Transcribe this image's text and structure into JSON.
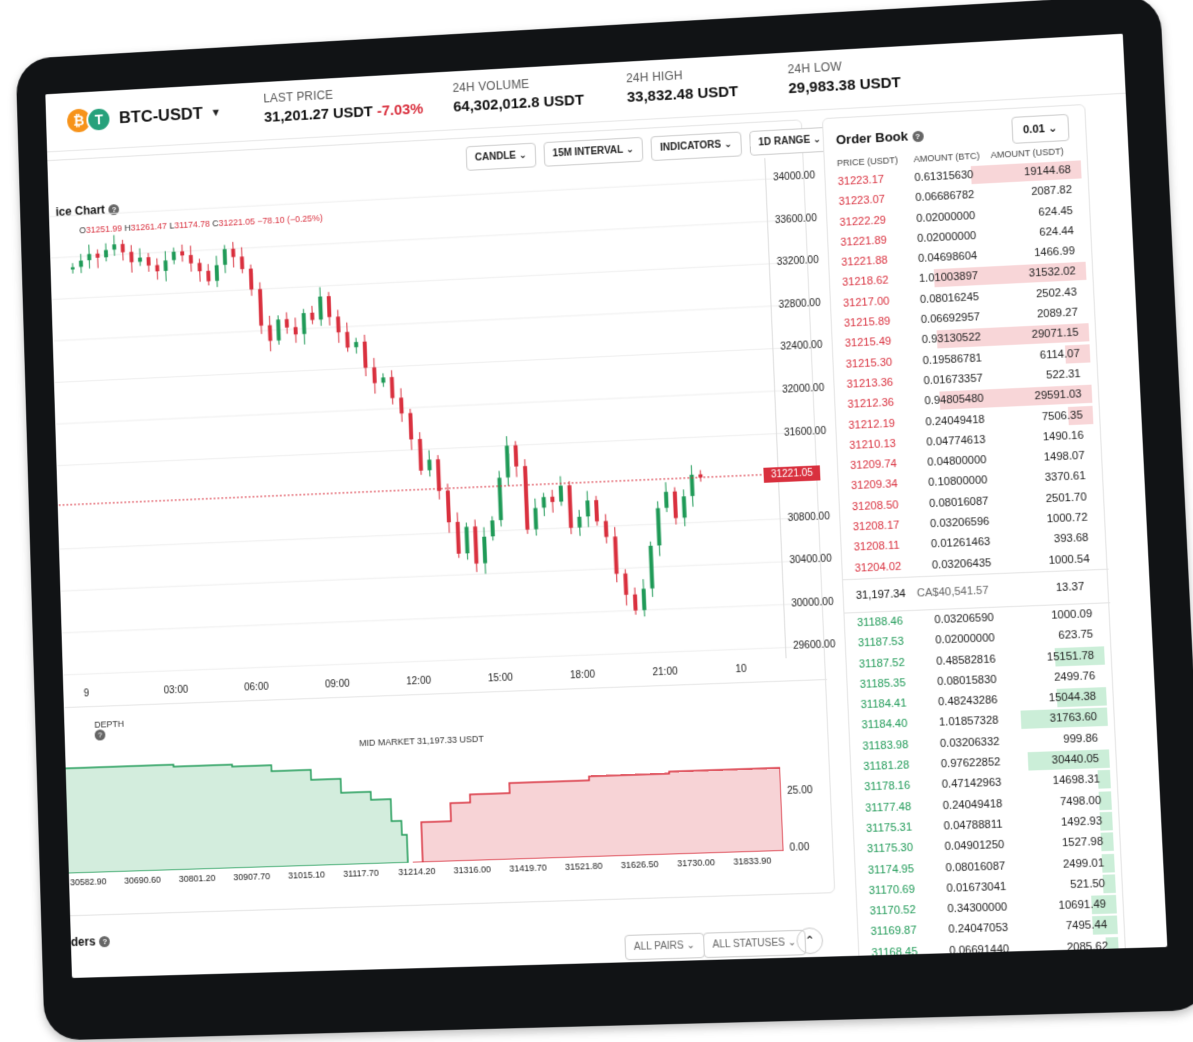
{
  "header": {
    "pair": "BTC-USDT",
    "coin_base": "₿",
    "coin_quote": "T",
    "last_price_label": "LAST PRICE",
    "last_price": "31,201.27 USDT",
    "last_change": "-7.03%",
    "volume_label": "24H VOLUME",
    "volume": "64,302,012.8 USDT",
    "high_label": "24H HIGH",
    "high": "33,832.48 USDT",
    "low_label": "24H LOW",
    "low": "29,983.38 USDT"
  },
  "chart": {
    "title": "ice Chart",
    "toolbar": {
      "candle": "CANDLE",
      "interval": "15M INTERVAL",
      "indicators": "INDICATORS",
      "range": "1D RANGE"
    },
    "ohlc": {
      "o_label": "O",
      "o": "31251.99",
      "h_label": "H",
      "h": "31261.47",
      "l_label": "L",
      "l": "31174.78",
      "c_label": "C",
      "c": "31221.05",
      "change": "−78.10 (−0.25%)"
    },
    "current_price_tag": "31221.05"
  },
  "chart_data": {
    "type": "candlestick",
    "title": "Price Chart",
    "x_ticks": [
      "9",
      "03:00",
      "06:00",
      "09:00",
      "12:00",
      "15:00",
      "18:00",
      "21:00",
      "10"
    ],
    "y_ticks": [
      "34000.00",
      "33600.00",
      "33200.00",
      "32800.00",
      "32400.00",
      "32000.00",
      "31600.00",
      "30800.00",
      "30400.00",
      "30000.00",
      "29600.00"
    ],
    "ylim": [
      29500,
      34200
    ],
    "close_path": [
      33500,
      33560,
      33620,
      33580,
      33650,
      33700,
      33620,
      33520,
      33560,
      33480,
      33420,
      33520,
      33600,
      33560,
      33480,
      33400,
      33300,
      33450,
      33600,
      33520,
      33400,
      33200,
      32850,
      32700,
      32900,
      32820,
      32750,
      32950,
      32880,
      33100,
      32900,
      32750,
      32600,
      32650,
      32400,
      32250,
      32300,
      32100,
      31950,
      31700,
      31400,
      31500,
      31200,
      30900,
      30600,
      30850,
      30500,
      30750,
      30900,
      31300,
      31600,
      31400,
      30800,
      31000,
      31100,
      31050,
      31200,
      30800,
      30900,
      31050,
      30850,
      30700,
      30350,
      30150,
      30000,
      30200,
      30600,
      30950,
      31100,
      30850,
      31050,
      31250,
      31221
    ],
    "mid_market_label": "MID MARKET",
    "mid_market": "31,197.33 USDT",
    "depth_label": "DEPTH",
    "depth_x_ticks": [
      "30582.90",
      "30690.60",
      "30801.20",
      "30907.70",
      "31015.10",
      "31117.70",
      "31214.20",
      "31316.00",
      "31419.70",
      "31521.80",
      "31626.50",
      "31730.00",
      "31833.90"
    ],
    "depth_y_ticks": [
      "25.00",
      "0.00"
    ]
  },
  "orders": {
    "label": "ders",
    "all_pairs": "ALL PAIRS",
    "all_statuses": "ALL STATUSES",
    "collapse_icon": "chevron-up-icon"
  },
  "orderbook": {
    "title": "Order Book",
    "precision": "0.01",
    "col_price": "PRICE (USDT)",
    "col_amount": "AMOUNT (BTC)",
    "col_total": "AMOUNT (USDT)",
    "asks": [
      {
        "p": "31223.17",
        "a": "0.61315630",
        "t": "19144.68",
        "w": 0.45
      },
      {
        "p": "31223.07",
        "a": "0.06686782",
        "t": "2087.82",
        "w": 0.0
      },
      {
        "p": "31222.29",
        "a": "0.02000000",
        "t": "624.45",
        "w": 0.0
      },
      {
        "p": "31221.89",
        "a": "0.02000000",
        "t": "624.44",
        "w": 0.0
      },
      {
        "p": "31221.88",
        "a": "0.04698604",
        "t": "1466.99",
        "w": 0.0
      },
      {
        "p": "31218.62",
        "a": "1.01003897",
        "t": "31532.02",
        "w": 0.62
      },
      {
        "p": "31217.00",
        "a": "0.08016245",
        "t": "2502.43",
        "w": 0.0
      },
      {
        "p": "31215.89",
        "a": "0.06692957",
        "t": "2089.27",
        "w": 0.0
      },
      {
        "p": "31215.49",
        "a": "0.93130522",
        "t": "29071.15",
        "w": 0.62
      },
      {
        "p": "31215.30",
        "a": "0.19586781",
        "t": "6114.07",
        "w": 0.1
      },
      {
        "p": "31213.36",
        "a": "0.01673357",
        "t": "522.31",
        "w": 0.0
      },
      {
        "p": "31212.36",
        "a": "0.94805480",
        "t": "29591.03",
        "w": 0.62
      },
      {
        "p": "31212.19",
        "a": "0.24049418",
        "t": "7506.35",
        "w": 0.1
      },
      {
        "p": "31210.13",
        "a": "0.04774613",
        "t": "1490.16",
        "w": 0.0
      },
      {
        "p": "31209.74",
        "a": "0.04800000",
        "t": "1498.07",
        "w": 0.0
      },
      {
        "p": "31209.34",
        "a": "0.10800000",
        "t": "3370.61",
        "w": 0.0
      },
      {
        "p": "31208.50",
        "a": "0.08016087",
        "t": "2501.70",
        "w": 0.0
      },
      {
        "p": "31208.17",
        "a": "0.03206596",
        "t": "1000.72",
        "w": 0.0
      },
      {
        "p": "31208.11",
        "a": "0.01261463",
        "t": "393.68",
        "w": 0.0
      },
      {
        "p": "31204.02",
        "a": "0.03206435",
        "t": "1000.54",
        "w": 0.0
      }
    ],
    "mid_price": "31,197.34",
    "mid_fiat": "CA$40,541.57",
    "mid_total": "13.37",
    "bids": [
      {
        "p": "31188.46",
        "a": "0.03206590",
        "t": "1000.09",
        "w": 0.0
      },
      {
        "p": "31187.53",
        "a": "0.02000000",
        "t": "623.75",
        "w": 0.0
      },
      {
        "p": "31187.52",
        "a": "0.48582816",
        "t": "15151.78",
        "w": 0.2
      },
      {
        "p": "31185.35",
        "a": "0.08015830",
        "t": "2499.76",
        "w": 0.0
      },
      {
        "p": "31184.41",
        "a": "0.48243286",
        "t": "15044.38",
        "w": 0.2
      },
      {
        "p": "31184.40",
        "a": "1.01857328",
        "t": "31763.60",
        "w": 0.35
      },
      {
        "p": "31183.98",
        "a": "0.03206332",
        "t": "999.86",
        "w": 0.0
      },
      {
        "p": "31181.28",
        "a": "0.97622852",
        "t": "30440.05",
        "w": 0.33
      },
      {
        "p": "31178.16",
        "a": "0.47142963",
        "t": "14698.31",
        "w": 0.05
      },
      {
        "p": "31177.48",
        "a": "0.24049418",
        "t": "7498.00",
        "w": 0.05
      },
      {
        "p": "31175.31",
        "a": "0.04788811",
        "t": "1492.93",
        "w": 0.05
      },
      {
        "p": "31175.30",
        "a": "0.04901250",
        "t": "1527.98",
        "w": 0.05
      },
      {
        "p": "31174.95",
        "a": "0.08016087",
        "t": "2499.01",
        "w": 0.05
      },
      {
        "p": "31170.69",
        "a": "0.01673041",
        "t": "521.50",
        "w": 0.05
      },
      {
        "p": "31170.52",
        "a": "0.34300000",
        "t": "10691.49",
        "w": 0.1
      },
      {
        "p": "31169.87",
        "a": "0.24047053",
        "t": "7495.44",
        "w": 0.1
      },
      {
        "p": "31168.45",
        "a": "0.06691440",
        "t": "2085.62",
        "w": 0.05
      }
    ]
  },
  "colors": {
    "up": "#1f9a57",
    "down": "#d9303e",
    "btc": "#f7931a",
    "usdt": "#26a17b"
  }
}
